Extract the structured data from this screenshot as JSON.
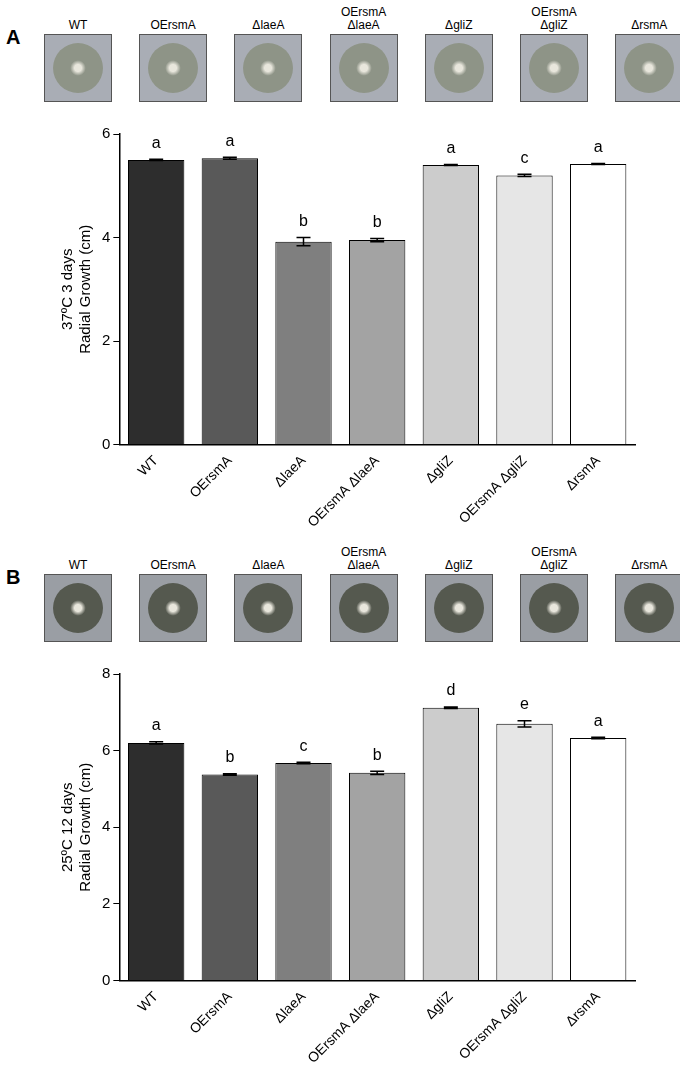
{
  "chart_data": [
    {
      "type": "bar",
      "title": "A",
      "ylabel": [
        "37ºC 3 days",
        "Radial Growth (cm)"
      ],
      "categories": [
        "WT",
        "OErsmA",
        "ΔlaeA",
        "OErsmA ΔlaeA",
        "ΔgliZ",
        "OErsmA ΔgliZ",
        "ΔrsmA"
      ],
      "values": [
        5.5,
        5.53,
        3.92,
        3.95,
        5.4,
        5.2,
        5.42
      ],
      "errors": [
        0.01,
        0.02,
        0.08,
        0.03,
        0.01,
        0.02,
        0.01
      ],
      "letters": [
        "a",
        "a",
        "b",
        "b",
        "a",
        "c",
        "a"
      ],
      "colors": [
        "#2d2d2d",
        "#595959",
        "#7f7f7f",
        "#a3a3a3",
        "#cccccc",
        "#e6e6e6",
        "#ffffff"
      ],
      "ylim": [
        0,
        6
      ],
      "yticks": [
        0,
        2,
        4,
        6
      ],
      "grid": false
    },
    {
      "type": "bar",
      "title": "B",
      "ylabel": [
        "25ºC 12 days",
        "Radial Growth (cm)"
      ],
      "categories": [
        "WT",
        "OErsmA",
        "ΔlaeA",
        "OErsmA ΔlaeA",
        "ΔgliZ",
        "OErsmA ΔgliZ",
        "ΔrsmA"
      ],
      "values": [
        6.2,
        5.38,
        5.68,
        5.42,
        7.12,
        6.7,
        6.33
      ],
      "errors": [
        0.03,
        0.02,
        0.02,
        0.04,
        0.02,
        0.08,
        0.02
      ],
      "letters": [
        "a",
        "b",
        "c",
        "b",
        "d",
        "e",
        "a"
      ],
      "colors": [
        "#2d2d2d",
        "#595959",
        "#7f7f7f",
        "#a3a3a3",
        "#cccccc",
        "#e6e6e6",
        "#ffffff"
      ],
      "ylim": [
        0,
        8
      ],
      "yticks": [
        0,
        2,
        4,
        6,
        8
      ],
      "grid": false
    }
  ]
}
